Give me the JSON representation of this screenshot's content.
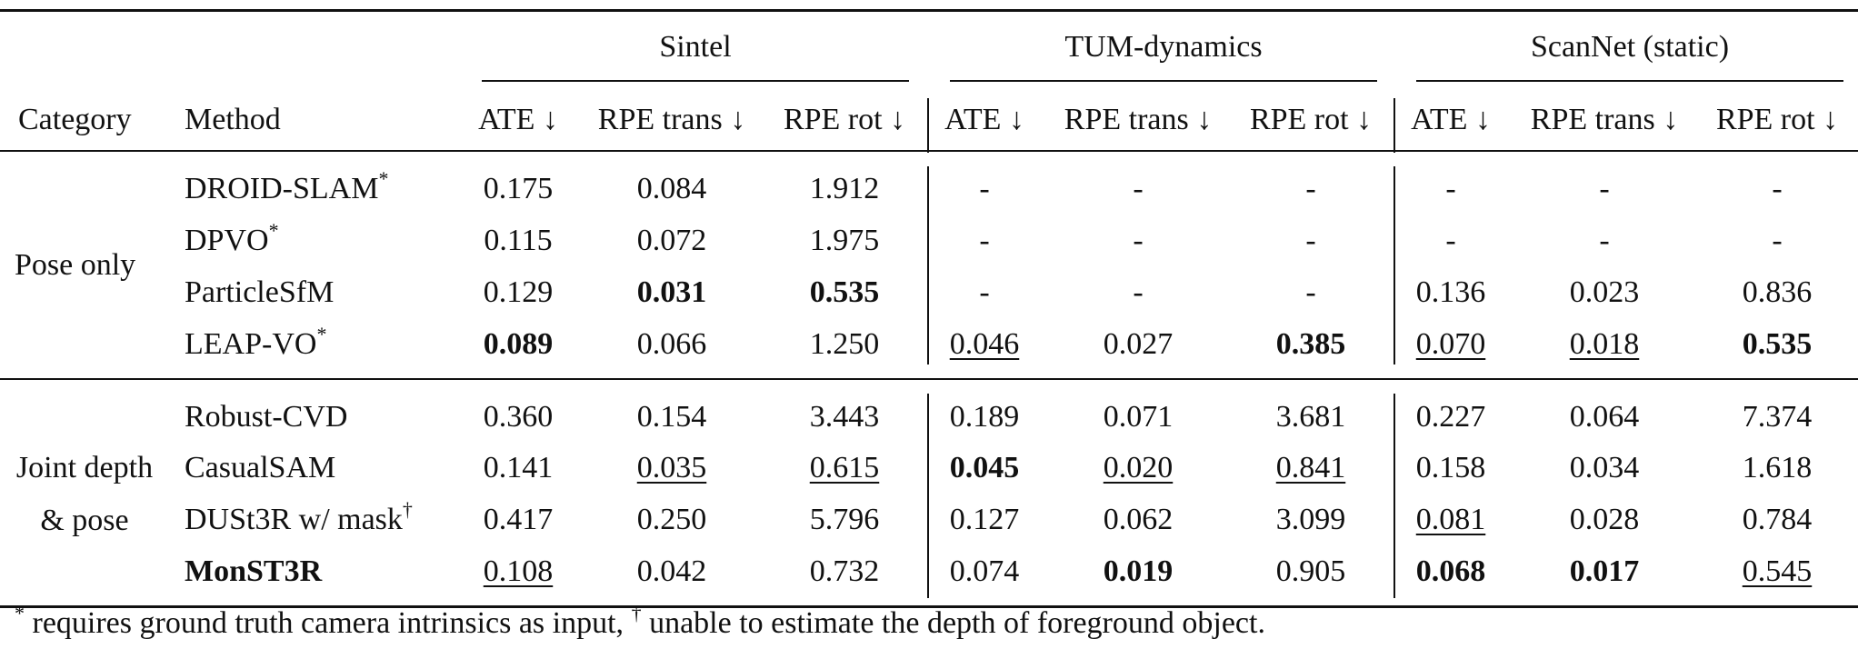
{
  "header": {
    "groups": [
      "Sintel",
      "TUM-dynamics",
      "ScanNet (static)"
    ],
    "category_label": "Category",
    "method_label": "Method",
    "metrics": [
      "ATE ↓",
      "RPE trans ↓",
      "RPE rot ↓"
    ]
  },
  "sections": [
    {
      "category": "Pose only",
      "rows": [
        {
          "method": "DROID-SLAM",
          "sup": "*",
          "values": [
            "0.175",
            "0.084",
            "1.912",
            "-",
            "-",
            "-",
            "-",
            "-",
            "-"
          ]
        },
        {
          "method": "DPVO",
          "sup": "*",
          "values": [
            "0.115",
            "0.072",
            "1.975",
            "-",
            "-",
            "-",
            "-",
            "-",
            "-"
          ]
        },
        {
          "method": "ParticleSfM",
          "sup": "",
          "values": [
            "0.129",
            "0.031",
            "0.535",
            "-",
            "-",
            "-",
            "0.136",
            "0.023",
            "0.836"
          ]
        },
        {
          "method": "LEAP-VO",
          "sup": "*",
          "values": [
            "0.089",
            "0.066",
            "1.250",
            "0.046",
            "0.027",
            "0.385",
            "0.070",
            "0.018",
            "0.535"
          ]
        }
      ]
    },
    {
      "category_line1": "Joint depth",
      "category_line2": "& pose",
      "rows": [
        {
          "method": "Robust-CVD",
          "sup": "",
          "values": [
            "0.360",
            "0.154",
            "3.443",
            "0.189",
            "0.071",
            "3.681",
            "0.227",
            "0.064",
            "7.374"
          ]
        },
        {
          "method": "CasualSAM",
          "sup": "",
          "values": [
            "0.141",
            "0.035",
            "0.615",
            "0.045",
            "0.020",
            "0.841",
            "0.158",
            "0.034",
            "1.618"
          ]
        },
        {
          "method": "DUSt3R w/ mask",
          "sup": "†",
          "values": [
            "0.417",
            "0.250",
            "5.796",
            "0.127",
            "0.062",
            "3.099",
            "0.081",
            "0.028",
            "0.784"
          ]
        },
        {
          "method": "MonST3R",
          "sup": "",
          "values": [
            "0.108",
            "0.042",
            "0.732",
            "0.074",
            "0.019",
            "0.905",
            "0.068",
            "0.017",
            "0.545"
          ]
        }
      ]
    }
  ],
  "footnote": {
    "star": "*",
    "text1": " requires ground truth camera intrinsics as input, ",
    "dagger": "†",
    "text2": " unable to estimate the depth of foreground object."
  }
}
